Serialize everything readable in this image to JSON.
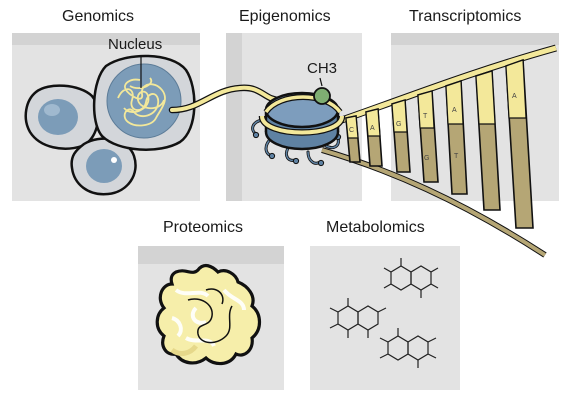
{
  "panels": {
    "genomics": "Genomics",
    "epigenomics": "Epigenomics",
    "transcriptomics": "Transcriptomics",
    "proteomics": "Proteomics",
    "metabolomics": "Metabolomics"
  },
  "annotations": {
    "nucleus": "Nucleus",
    "methyl": "CH3"
  },
  "rna_letters": [
    "C",
    "A",
    "G",
    "T",
    "A",
    "G",
    "T",
    "A"
  ],
  "colors": {
    "panel": "#e3e3e3",
    "panel_shade": "#d2d2d2",
    "cell": "#cfd3d8",
    "nucleus": "#7c9cb8",
    "dna": "#f3e89a",
    "dna_dark": "#a89b6a",
    "histone": "#5f82a3",
    "methyl": "#7fae72",
    "protein": "#f6eeaa"
  }
}
